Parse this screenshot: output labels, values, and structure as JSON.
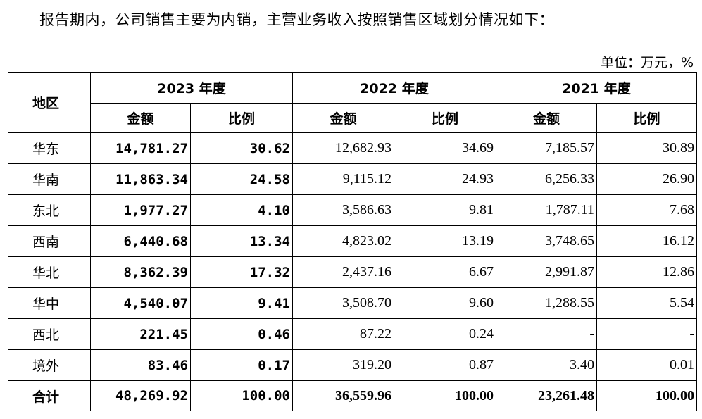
{
  "intro": "报告期内，公司销售主要为内销，主营业务收入按照销售区域划分情况如下：",
  "unit": "单位：万元，%",
  "table": {
    "region_header": "地区",
    "years": [
      "2023 年度",
      "2022 年度",
      "2021 年度"
    ],
    "sub_headers": [
      "金额",
      "比例",
      "金额",
      "比例",
      "金额",
      "比例"
    ],
    "rows": [
      {
        "region": "华东",
        "values": [
          "14,781.27",
          "30.62",
          "12,682.93",
          "34.69",
          "7,185.57",
          "30.89"
        ]
      },
      {
        "region": "华南",
        "values": [
          "11,863.34",
          "24.58",
          "9,115.12",
          "24.93",
          "6,256.33",
          "26.90"
        ]
      },
      {
        "region": "东北",
        "values": [
          "1,977.27",
          "4.10",
          "3,586.63",
          "9.81",
          "1,787.11",
          "7.68"
        ]
      },
      {
        "region": "西南",
        "values": [
          "6,440.68",
          "13.34",
          "4,823.02",
          "13.19",
          "3,748.65",
          "16.12"
        ]
      },
      {
        "region": "华北",
        "values": [
          "8,362.39",
          "17.32",
          "2,437.16",
          "6.67",
          "2,991.87",
          "12.86"
        ]
      },
      {
        "region": "华中",
        "values": [
          "4,540.07",
          "9.41",
          "3,508.70",
          "9.60",
          "1,288.55",
          "5.54"
        ]
      },
      {
        "region": "西北",
        "values": [
          "221.45",
          "0.46",
          "87.22",
          "0.24",
          "-",
          "-"
        ]
      },
      {
        "region": "境外",
        "values": [
          "83.46",
          "0.17",
          "319.20",
          "0.87",
          "3.40",
          "0.01"
        ]
      }
    ],
    "total": {
      "region": "合计",
      "values": [
        "48,269.92",
        "100.00",
        "36,559.96",
        "100.00",
        "23,261.48",
        "100.00"
      ]
    }
  }
}
